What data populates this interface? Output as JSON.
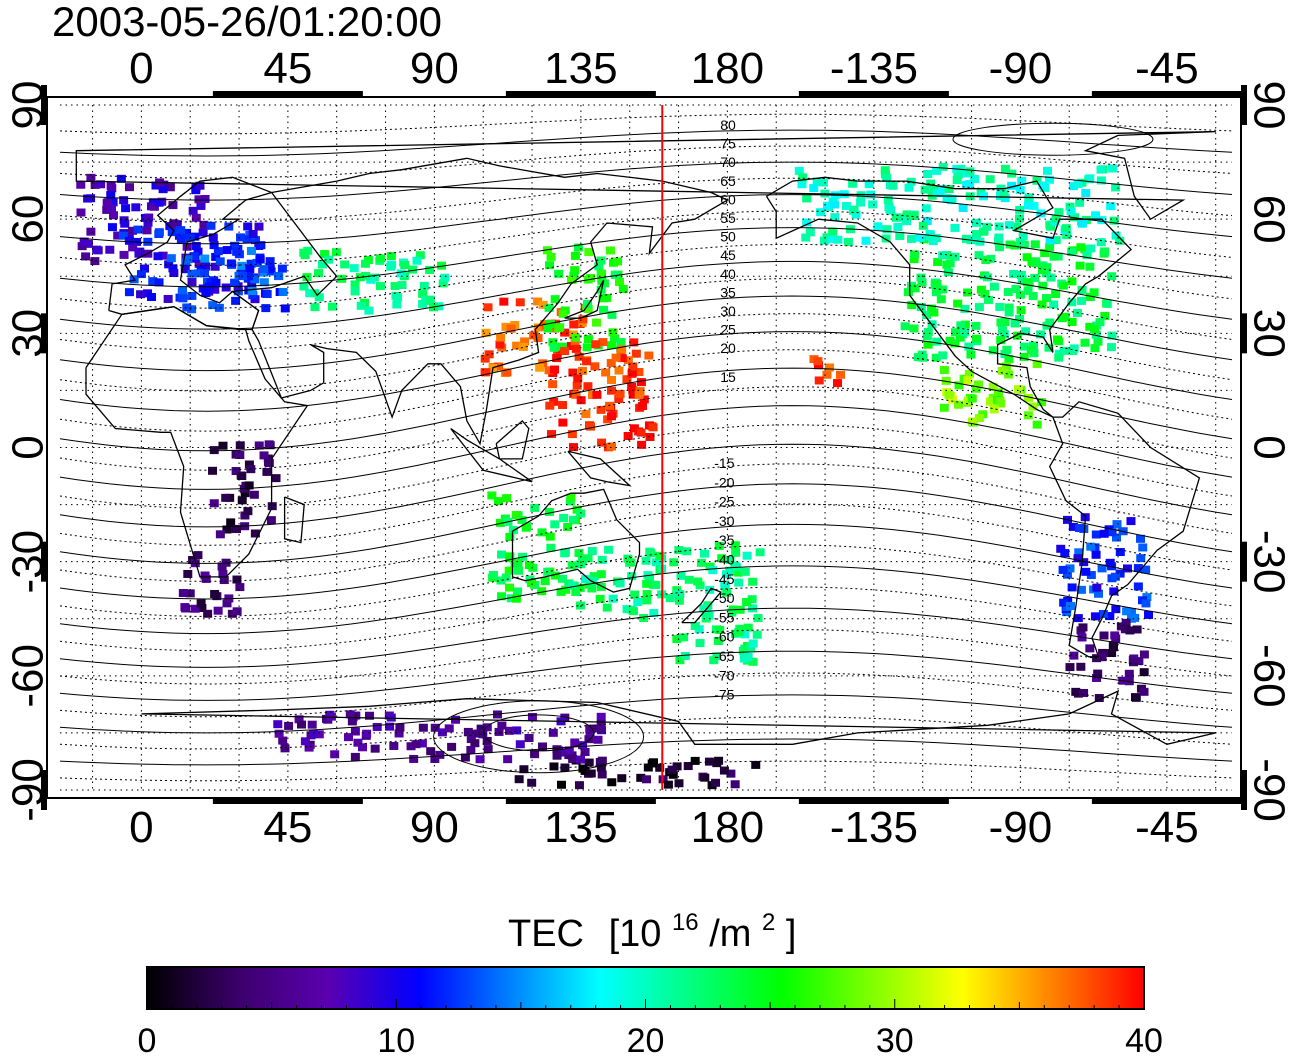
{
  "timestamp": "2003-05-26/01:20:00",
  "map": {
    "lon_ticks_labels": [
      "0",
      "45",
      "90",
      "135",
      "180",
      "-135",
      "-90",
      "-45"
    ],
    "lat_ticks_labels": [
      "90",
      "60",
      "30",
      "0",
      "-30",
      "-60",
      "-90"
    ],
    "magnetic_lat_labels_north": [
      "80",
      "75",
      "70",
      "65",
      "60",
      "55",
      "50",
      "45",
      "40",
      "35",
      "30",
      "25",
      "20",
      "15"
    ],
    "magnetic_lat_labels_south": [
      "-15",
      "-20",
      "-25",
      "-30",
      "-35",
      "-40",
      "-45",
      "-50",
      "-55",
      "-60",
      "-65",
      "-70",
      "-75"
    ],
    "red_meridian_lon": 160,
    "lon_range": [
      -25,
      335
    ],
    "lat_range": [
      -90,
      90
    ],
    "coastlines": "present",
    "grid": "dotted"
  },
  "colorbar": {
    "title_prefix": "TEC",
    "title_unit_base": "[10",
    "title_unit_exp1": "16",
    "title_unit_mid": "/m",
    "title_unit_exp2": "2",
    "title_unit_end": "]",
    "min": 0,
    "max": 40,
    "tick_labels": [
      "0",
      "10",
      "20",
      "30",
      "40"
    ],
    "colors": [
      "#000000",
      "#3a006a",
      "#5a00b0",
      "#0000ff",
      "#0080ff",
      "#00ffff",
      "#00ff80",
      "#00ff00",
      "#80ff00",
      "#ffff00",
      "#ff8000",
      "#ff0000"
    ]
  },
  "chart_data": {
    "type": "heatmap",
    "title": "2003-05-26/01:20:00",
    "xlabel": "",
    "ylabel": "",
    "xlim": [
      -25,
      335
    ],
    "ylim": [
      -90,
      90
    ],
    "value_range": [
      0,
      40
    ],
    "cells": [
      {
        "lon": 0,
        "lat": 60,
        "tec": 8
      },
      {
        "lon": 15,
        "lat": 50,
        "tec": 11
      },
      {
        "lon": 25,
        "lat": 45,
        "tec": 13
      },
      {
        "lon": 70,
        "lat": 45,
        "tec": 22
      },
      {
        "lon": 120,
        "lat": 30,
        "tec": 38
      },
      {
        "lon": 135,
        "lat": 40,
        "tec": 25
      },
      {
        "lon": 140,
        "lat": 15,
        "tec": 39
      },
      {
        "lon": 120,
        "lat": -25,
        "tec": 24
      },
      {
        "lon": 145,
        "lat": -35,
        "tec": 22
      },
      {
        "lon": 175,
        "lat": -40,
        "tec": 22
      },
      {
        "lon": 210,
        "lat": 20,
        "tec": 39
      },
      {
        "lon": 265,
        "lat": 40,
        "tec": 23
      },
      {
        "lon": 260,
        "lat": 15,
        "tec": 29
      },
      {
        "lon": 250,
        "lat": 65,
        "tec": 20
      },
      {
        "lon": 295,
        "lat": -30,
        "tec": 12
      },
      {
        "lon": 295,
        "lat": -55,
        "tec": 4
      },
      {
        "lon": 30,
        "lat": -10,
        "tec": 3
      },
      {
        "lon": 20,
        "lat": -35,
        "tec": 4
      },
      {
        "lon": 150,
        "lat": -85,
        "tec": 2
      },
      {
        "lon": 90,
        "lat": -75,
        "tec": 6
      }
    ]
  }
}
